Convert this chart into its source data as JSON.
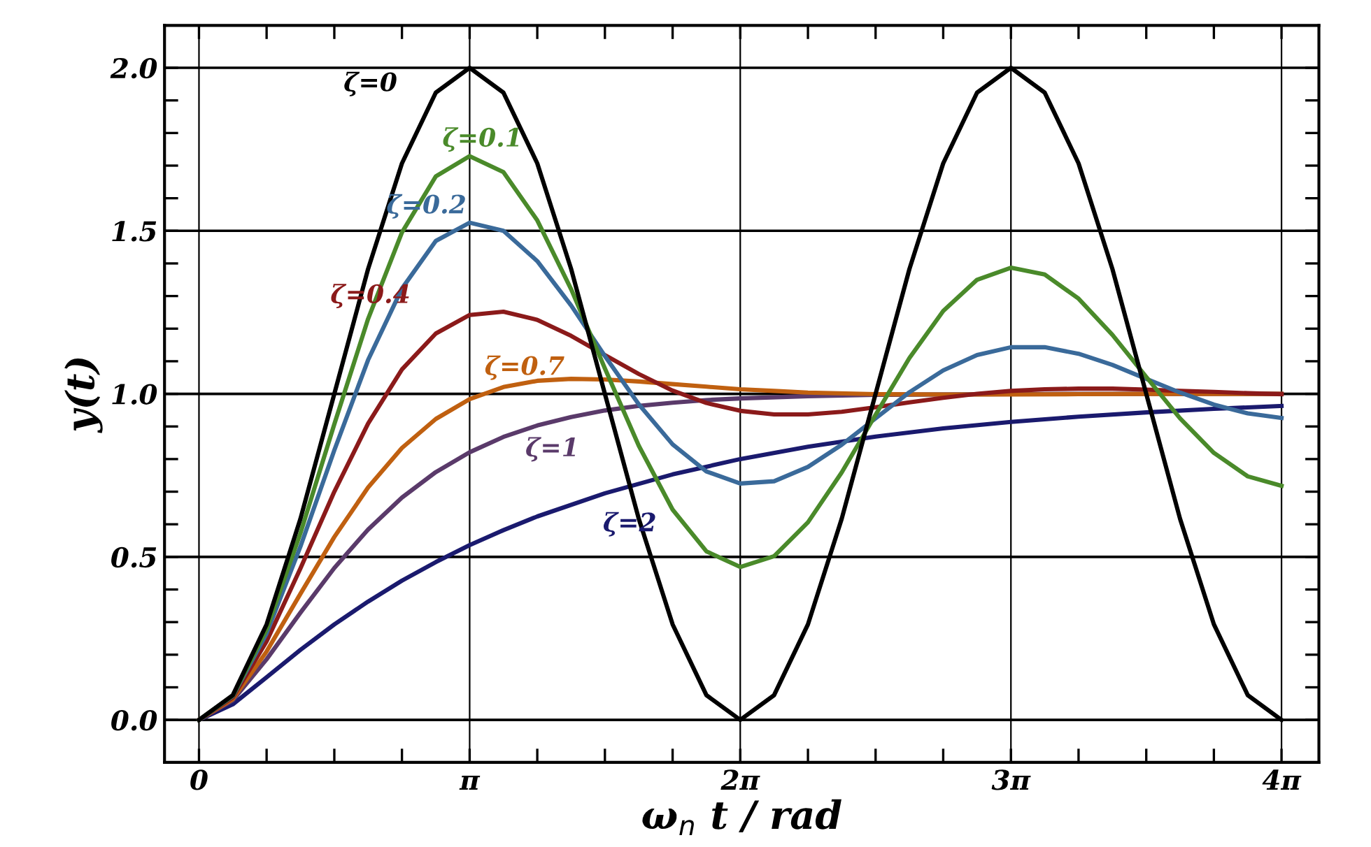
{
  "chart_data": {
    "type": "line",
    "xlabel": "ω$_{n}$ t / rad",
    "ylabel": "y(t)",
    "x": [
      0,
      0.393,
      0.785,
      1.178,
      1.571,
      1.963,
      2.356,
      2.749,
      3.142,
      3.534,
      3.927,
      4.32,
      4.712,
      5.105,
      5.498,
      5.89,
      6.283,
      6.676,
      7.069,
      7.461,
      7.854,
      8.247,
      8.639,
      9.032,
      9.425,
      9.817,
      10.21,
      10.603,
      10.996,
      11.388,
      11.781,
      12.174,
      12.566
    ],
    "series": [
      {
        "name": "ζ=0",
        "color": "#000000",
        "values": [
          0,
          0.076,
          0.293,
          0.617,
          1,
          1.383,
          1.707,
          1.924,
          2,
          1.924,
          1.707,
          1.383,
          1,
          0.617,
          0.293,
          0.076,
          0,
          0.076,
          0.293,
          0.617,
          1,
          1.383,
          1.707,
          1.924,
          2,
          1.924,
          1.707,
          1.383,
          1,
          0.617,
          0.293,
          0.076,
          0
        ]
      },
      {
        "name": "ζ=0.1",
        "color": "#4a8a2a",
        "values": [
          0,
          0.074,
          0.278,
          0.573,
          0.907,
          1.23,
          1.495,
          1.667,
          1.729,
          1.68,
          1.532,
          1.321,
          1.078,
          0.841,
          0.645,
          0.517,
          0.469,
          0.502,
          0.606,
          0.759,
          0.936,
          1.11,
          1.254,
          1.35,
          1.387,
          1.366,
          1.292,
          1.181,
          1.052,
          0.925,
          0.819,
          0.747,
          0.718
        ]
      },
      {
        "name": "ζ=0.2",
        "color": "#3a6a9a",
        "values": [
          0,
          0.073,
          0.265,
          0.532,
          0.827,
          1.104,
          1.323,
          1.469,
          1.525,
          1.5,
          1.407,
          1.271,
          1.116,
          0.968,
          0.845,
          0.762,
          0.725,
          0.732,
          0.776,
          0.844,
          0.925,
          1.005,
          1.072,
          1.119,
          1.143,
          1.143,
          1.123,
          1.089,
          1.046,
          1.004,
          0.967,
          0.94,
          0.926
        ]
      },
      {
        "name": "ζ=0.4",
        "color": "#8b1a1a",
        "values": [
          0,
          0.069,
          0.241,
          0.465,
          0.7,
          0.909,
          1.075,
          1.185,
          1.242,
          1.252,
          1.227,
          1.178,
          1.119,
          1.061,
          1.01,
          0.972,
          0.948,
          0.937,
          0.937,
          0.945,
          0.959,
          0.974,
          0.988,
          1.0,
          1.009,
          1.014,
          1.016,
          1.016,
          1.013,
          1.009,
          1.006,
          1.002,
          0.999
        ]
      },
      {
        "name": "ζ=0.7",
        "color": "#c06010",
        "x": [
          0,
          0.393,
          0.785,
          1.178,
          1.571,
          1.963,
          2.356,
          2.749,
          3.142,
          3.534,
          3.927,
          4.32,
          4.712,
          5.105,
          5.498,
          5.89,
          6.283,
          6.676,
          7.069,
          7.854,
          8.639,
          9.425,
          10.21,
          10.996,
          11.781,
          12.566
        ],
        "values": [
          0,
          0.064,
          0.21,
          0.387,
          0.561,
          0.713,
          0.834,
          0.923,
          0.984,
          1.021,
          1.04,
          1.046,
          1.044,
          1.038,
          1.03,
          1.022,
          1.014,
          1.009,
          1.004,
          0.999,
          0.998,
          0.998,
          0.999,
          1,
          1,
          1
        ]
      },
      {
        "name": "ζ=1",
        "color": "#5a3a6a",
        "x": [
          0,
          0.393,
          0.785,
          1.178,
          1.571,
          1.963,
          2.356,
          2.749,
          3.142,
          3.534,
          3.927,
          4.32,
          4.712,
          5.105,
          5.498,
          5.89,
          6.283,
          7.069,
          7.854,
          8.639,
          9.425,
          10.21,
          10.996,
          11.781,
          12.566
        ],
        "values": [
          0,
          0.06,
          0.186,
          0.329,
          0.466,
          0.584,
          0.682,
          0.76,
          0.821,
          0.868,
          0.903,
          0.929,
          0.949,
          0.963,
          0.973,
          0.981,
          0.986,
          0.993,
          0.997,
          0.998,
          0.999,
          1,
          1,
          1,
          1
        ]
      },
      {
        "name": "ζ=2",
        "color": "#1a1a6e",
        "x": [
          0,
          0.393,
          0.785,
          1.178,
          1.571,
          1.963,
          2.356,
          2.749,
          3.142,
          3.534,
          3.927,
          4.712,
          5.498,
          6.283,
          7.069,
          7.854,
          8.639,
          9.425,
          10.21,
          10.996,
          11.781,
          12.566
        ],
        "values": [
          0,
          0.048,
          0.131,
          0.215,
          0.293,
          0.363,
          0.427,
          0.484,
          0.536,
          0.582,
          0.624,
          0.695,
          0.753,
          0.8,
          0.838,
          0.869,
          0.894,
          0.914,
          0.93,
          0.943,
          0.954,
          0.963
        ]
      }
    ],
    "xlim": [
      -0.4,
      13.0
    ],
    "ylim": [
      -0.13,
      2.13
    ],
    "xticks": [
      {
        "value": 0,
        "label": "0"
      },
      {
        "value": 0.785,
        "label": null
      },
      {
        "value": 1.571,
        "label": null
      },
      {
        "value": 2.356,
        "label": null
      },
      {
        "value": 3.142,
        "label": "π"
      },
      {
        "value": 3.927,
        "label": null
      },
      {
        "value": 4.712,
        "label": null
      },
      {
        "value": 5.498,
        "label": null
      },
      {
        "value": 6.283,
        "label": "2π"
      },
      {
        "value": 7.069,
        "label": null
      },
      {
        "value": 7.854,
        "label": null
      },
      {
        "value": 8.639,
        "label": null
      },
      {
        "value": 9.425,
        "label": "3π"
      },
      {
        "value": 10.21,
        "label": null
      },
      {
        "value": 10.996,
        "label": null
      },
      {
        "value": 11.781,
        "label": null
      },
      {
        "value": 12.566,
        "label": "4π"
      }
    ],
    "yticks": [
      {
        "value": 0,
        "label": "0.0"
      },
      {
        "value": 0.1,
        "label": null
      },
      {
        "value": 0.2,
        "label": null
      },
      {
        "value": 0.3,
        "label": null
      },
      {
        "value": 0.4,
        "label": null
      },
      {
        "value": 0.5,
        "label": "0.5"
      },
      {
        "value": 0.6,
        "label": null
      },
      {
        "value": 0.7,
        "label": null
      },
      {
        "value": 0.8,
        "label": null
      },
      {
        "value": 0.9,
        "label": null
      },
      {
        "value": 1.0,
        "label": "1.0"
      },
      {
        "value": 1.1,
        "label": null
      },
      {
        "value": 1.2,
        "label": null
      },
      {
        "value": 1.3,
        "label": null
      },
      {
        "value": 1.4,
        "label": null
      },
      {
        "value": 1.5,
        "label": "1.5"
      },
      {
        "value": 1.6,
        "label": null
      },
      {
        "value": 1.7,
        "label": null
      },
      {
        "value": 1.8,
        "label": null
      },
      {
        "value": 1.9,
        "label": null
      },
      {
        "value": 2.0,
        "label": "2.0"
      }
    ],
    "grid": true,
    "line_style": "solid"
  }
}
